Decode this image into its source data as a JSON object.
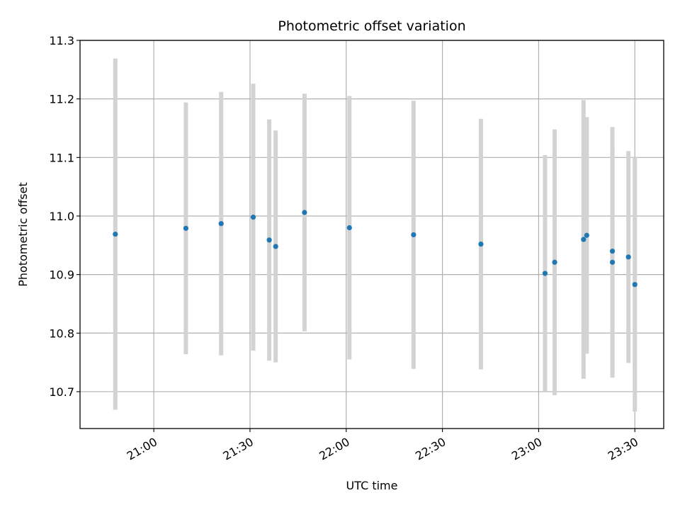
{
  "chart_data": {
    "type": "scatter",
    "title": "Photometric offset variation",
    "xlabel": "UTC time",
    "ylabel": "Photometric offset",
    "x_ticks": [
      "21:00",
      "21:30",
      "22:00",
      "22:30",
      "23:00",
      "23:30"
    ],
    "y_ticks": [
      "10.7",
      "10.8",
      "10.9",
      "11.0",
      "11.1",
      "11.2",
      "11.3"
    ],
    "x_range": [
      "20:37",
      "23:39"
    ],
    "ylim": [
      10.637,
      11.3
    ],
    "grid": true,
    "point_color": "#1f77b4",
    "errorbar_color": "#d3d3d3",
    "points": [
      {
        "x": "20:48",
        "y": 10.969,
        "err": 0.3
      },
      {
        "x": "21:10",
        "y": 10.979,
        "err": 0.215
      },
      {
        "x": "21:21",
        "y": 10.987,
        "err": 0.225
      },
      {
        "x": "21:31",
        "y": 10.998,
        "err": 0.228
      },
      {
        "x": "21:36",
        "y": 10.959,
        "err": 0.206
      },
      {
        "x": "21:38",
        "y": 10.948,
        "err": 0.198
      },
      {
        "x": "21:47",
        "y": 11.006,
        "err": 0.203
      },
      {
        "x": "22:01",
        "y": 10.98,
        "err": 0.225
      },
      {
        "x": "22:21",
        "y": 10.968,
        "err": 0.229
      },
      {
        "x": "22:42",
        "y": 10.952,
        "err": 0.214
      },
      {
        "x": "23:02",
        "y": 10.902,
        "err": 0.202
      },
      {
        "x": "23:05",
        "y": 10.921,
        "err": 0.227
      },
      {
        "x": "23:14",
        "y": 10.96,
        "err": 0.238
      },
      {
        "x": "23:15",
        "y": 10.967,
        "err": 0.202
      },
      {
        "x": "23:23",
        "y": 10.94,
        "err": 0.212
      },
      {
        "x": "23:23",
        "y": 10.921,
        "err": 0.197
      },
      {
        "x": "23:28",
        "y": 10.93,
        "err": 0.181
      },
      {
        "x": "23:30",
        "y": 10.883,
        "err": 0.217
      }
    ]
  }
}
